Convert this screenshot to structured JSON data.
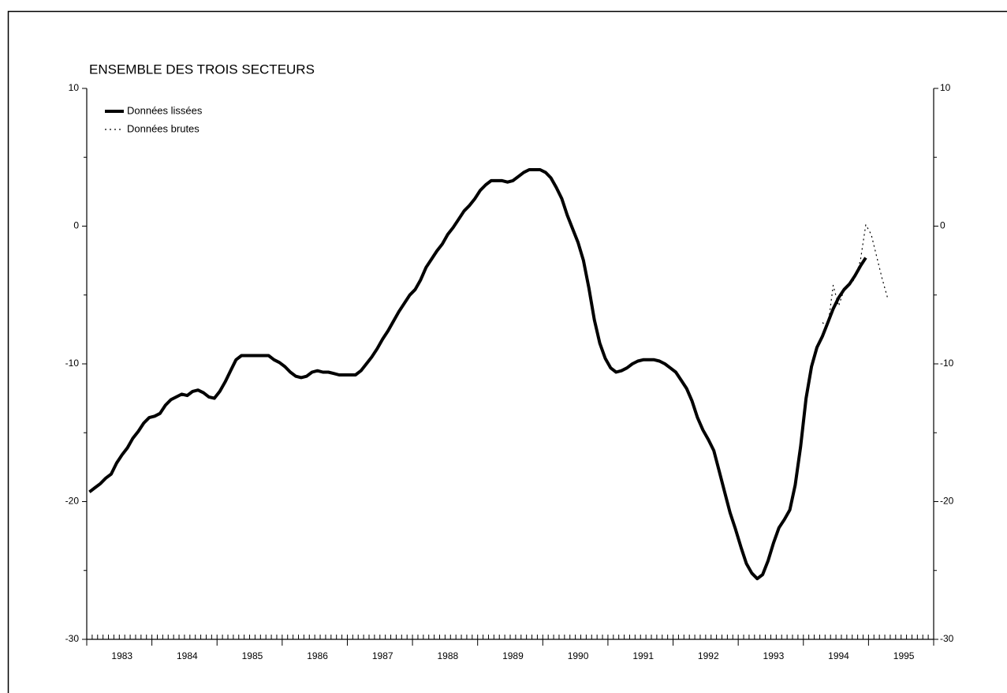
{
  "chart_data": {
    "type": "line",
    "title": "ENSEMBLE DES TROIS SECTEURS",
    "categories": [
      null,
      null,
      null,
      null,
      null,
      null,
      "1983",
      null,
      null,
      null,
      null,
      null,
      null,
      null,
      null,
      null,
      null,
      null,
      "1984",
      null,
      null,
      null,
      null,
      null,
      null,
      null,
      null,
      null,
      null,
      null,
      "1985",
      null,
      null,
      null,
      null,
      null,
      null,
      null,
      null,
      null,
      null,
      null,
      "1986",
      null,
      null,
      null,
      null,
      null,
      null,
      null,
      null,
      null,
      null,
      null,
      "1987",
      null,
      null,
      null,
      null,
      null,
      null,
      null,
      null,
      null,
      null,
      null,
      "1988",
      null,
      null,
      null,
      null,
      null,
      null,
      null,
      null,
      null,
      null,
      null,
      "1989",
      null,
      null,
      null,
      null,
      null,
      null,
      null,
      null,
      null,
      null,
      null,
      "1990",
      null,
      null,
      null,
      null,
      null,
      null,
      null,
      null,
      null,
      null,
      null,
      "1991",
      null,
      null,
      null,
      null,
      null,
      null,
      null,
      null,
      null,
      null,
      null,
      "1992",
      null,
      null,
      null,
      null,
      null,
      null,
      null,
      null,
      null,
      null,
      null,
      "1993",
      null,
      null,
      null,
      null,
      null,
      null,
      null,
      null,
      null,
      null,
      null,
      "1994",
      null,
      null,
      null,
      null,
      null,
      null,
      null,
      null,
      null,
      null,
      null,
      "1995",
      null,
      null,
      null,
      null,
      null
    ],
    "series": [
      {
        "name": "Données lissées",
        "color": "#000000",
        "style": "solid",
        "values": [
          -19.3,
          -19.0,
          -18.7,
          -18.3,
          -18.0,
          -17.2,
          -16.6,
          -16.1,
          -15.4,
          -14.9,
          -14.3,
          -13.9,
          -13.8,
          -13.6,
          -13.0,
          -12.6,
          -12.4,
          -12.2,
          -12.3,
          -12.0,
          -11.9,
          -12.1,
          -12.4,
          -12.5,
          -12.0,
          -11.3,
          -10.5,
          -9.7,
          -9.4,
          -9.4,
          -9.4,
          -9.4,
          -9.4,
          -9.4,
          -9.7,
          -9.9,
          -10.2,
          -10.6,
          -10.9,
          -11.0,
          -10.9,
          -10.6,
          -10.5,
          -10.6,
          -10.6,
          -10.7,
          -10.8,
          -10.8,
          -10.8,
          -10.8,
          -10.5,
          -10.0,
          -9.5,
          -8.9,
          -8.2,
          -7.6,
          -6.9,
          -6.2,
          -5.6,
          -5.0,
          -4.6,
          -3.9,
          -3.0,
          -2.4,
          -1.8,
          -1.3,
          -0.6,
          -0.1,
          0.5,
          1.1,
          1.5,
          2.0,
          2.6,
          3.0,
          3.3,
          3.3,
          3.3,
          3.2,
          3.3,
          3.6,
          3.9,
          4.1,
          4.1,
          4.1,
          3.9,
          3.5,
          2.8,
          2.0,
          0.8,
          -0.2,
          -1.2,
          -2.5,
          -4.5,
          -6.8,
          -8.5,
          -9.6,
          -10.3,
          -10.6,
          -10.5,
          -10.3,
          -10.0,
          -9.8,
          -9.7,
          -9.7,
          -9.7,
          -9.8,
          -10.0,
          -10.3,
          -10.6,
          -11.2,
          -11.8,
          -12.7,
          -13.9,
          -14.8,
          -15.5,
          -16.3,
          -17.8,
          -19.3,
          -20.8,
          -22.0,
          -23.3,
          -24.5,
          -25.2,
          -25.6,
          -25.3,
          -24.3,
          -23.0,
          -21.9,
          -21.3,
          -20.6,
          -18.8,
          -16.0,
          -12.5,
          -10.2,
          -8.8,
          -8.0,
          -7.0,
          -6.0,
          -5.2,
          -4.6,
          -4.2,
          -3.6,
          -2.9,
          -2.3,
          null,
          null,
          null,
          null,
          null,
          null,
          null,
          null,
          null,
          null,
          null,
          null
        ]
      },
      {
        "name": "Données brutes",
        "color": "#000000",
        "style": "dotted",
        "values": [
          null,
          null,
          null,
          null,
          null,
          null,
          null,
          null,
          null,
          null,
          null,
          null,
          null,
          null,
          null,
          null,
          null,
          null,
          null,
          null,
          null,
          null,
          null,
          null,
          null,
          null,
          null,
          null,
          null,
          null,
          null,
          null,
          null,
          null,
          null,
          null,
          null,
          null,
          null,
          null,
          null,
          null,
          null,
          null,
          null,
          null,
          null,
          null,
          null,
          null,
          null,
          null,
          null,
          null,
          null,
          null,
          null,
          null,
          null,
          null,
          null,
          null,
          null,
          null,
          null,
          null,
          null,
          null,
          null,
          null,
          null,
          null,
          null,
          null,
          null,
          null,
          null,
          null,
          null,
          null,
          null,
          null,
          null,
          null,
          null,
          null,
          null,
          null,
          null,
          null,
          null,
          null,
          null,
          null,
          null,
          null,
          null,
          null,
          null,
          null,
          null,
          null,
          null,
          null,
          null,
          null,
          null,
          null,
          null,
          null,
          null,
          null,
          null,
          null,
          null,
          null,
          null,
          null,
          null,
          null,
          null,
          null,
          null,
          null,
          null,
          null,
          null,
          null,
          null,
          null,
          null,
          null,
          null,
          null,
          null,
          -7.0,
          -7.3,
          -4.3,
          -5.8,
          -4.6,
          -4.3,
          -3.8,
          -2.5,
          0.1,
          -0.6,
          -2.2,
          -3.8,
          -5.2,
          null,
          null,
          null,
          null,
          null,
          null,
          null,
          null
        ]
      }
    ],
    "ylim": [
      -30,
      10
    ],
    "yticks": [
      -30,
      -20,
      -10,
      0,
      10
    ],
    "yminorticks": [
      -25,
      -15,
      -5,
      5
    ],
    "right_axis": true,
    "legend": "upper left"
  }
}
